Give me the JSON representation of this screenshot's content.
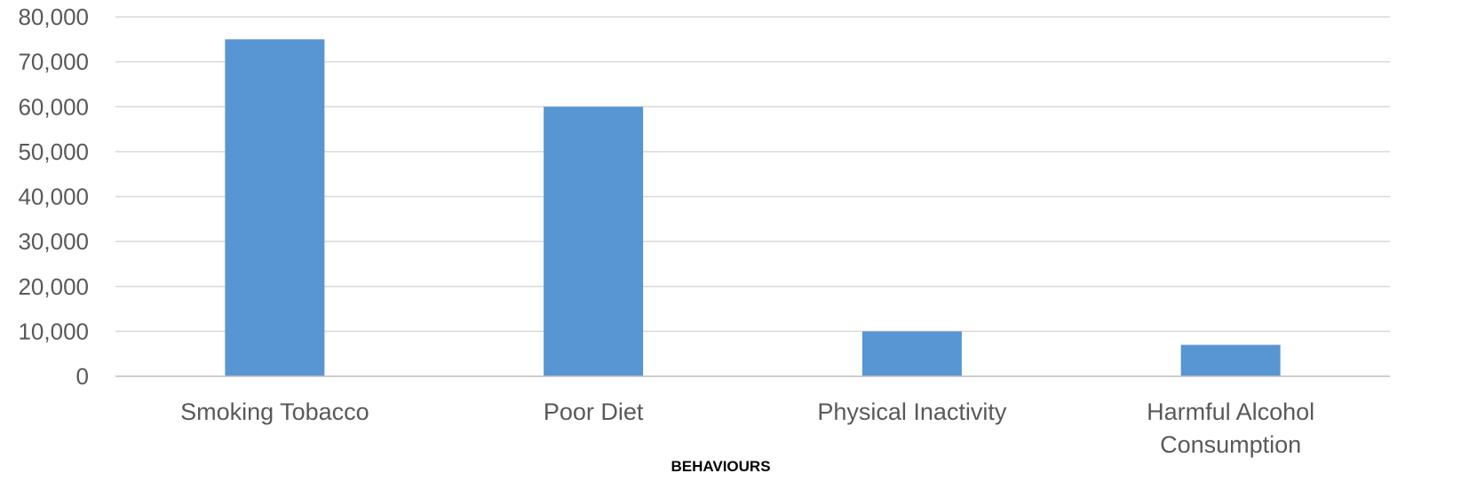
{
  "chart_data": {
    "type": "bar",
    "categories": [
      [
        "Smoking Tobacco"
      ],
      [
        "Poor Diet"
      ],
      [
        "Physical Inactivity"
      ],
      [
        "Harmful Alcohol",
        "Consumption"
      ]
    ],
    "values": [
      75000,
      60000,
      10000,
      7000
    ],
    "ylim": [
      0,
      80000
    ],
    "yticks": [
      0,
      10000,
      20000,
      30000,
      40000,
      50000,
      60000,
      70000,
      80000
    ],
    "ytick_labels": [
      "0",
      "10,000",
      "20,000",
      "30,000",
      "40,000",
      "50,000",
      "60,000",
      "70,000",
      "80,000"
    ],
    "xlabel": "BEHAVIOURS",
    "ylabel": "",
    "grid": true,
    "legend": "none",
    "colors": {
      "bar": "#5796d3"
    }
  }
}
